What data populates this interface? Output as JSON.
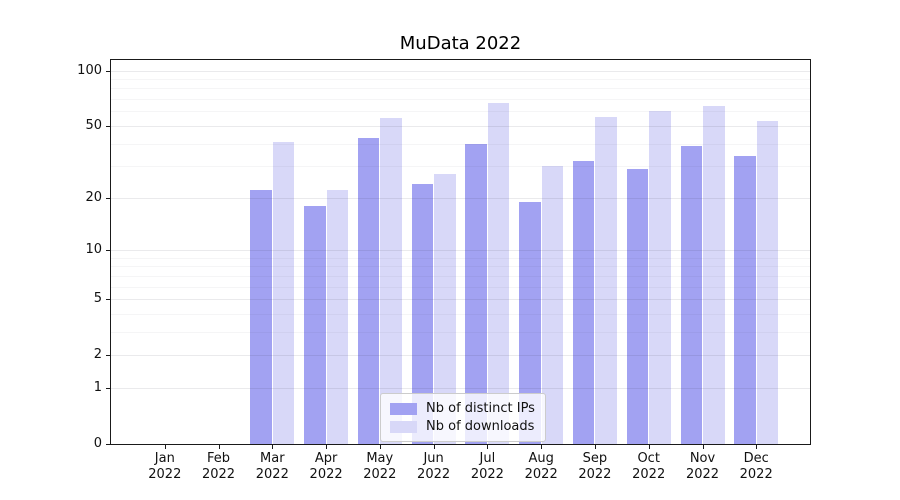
{
  "title": "MuData 2022",
  "chart_data": {
    "type": "bar",
    "title": "MuData 2022",
    "categories": [
      "Jan 2022",
      "Feb 2022",
      "Mar 2022",
      "Apr 2022",
      "May 2022",
      "Jun 2022",
      "Jul 2022",
      "Aug 2022",
      "Sep 2022",
      "Oct 2022",
      "Nov 2022",
      "Dec 2022"
    ],
    "months": [
      "Jan",
      "Feb",
      "Mar",
      "Apr",
      "May",
      "Jun",
      "Jul",
      "Aug",
      "Sep",
      "Oct",
      "Nov",
      "Dec"
    ],
    "year_line": "2022",
    "series": [
      {
        "name": "Nb of distinct IPs",
        "color": "#a2a2f2",
        "values": [
          0,
          0,
          22,
          18,
          43,
          24,
          40,
          19,
          32,
          29,
          39,
          34
        ]
      },
      {
        "name": "Nb of downloads",
        "color": "#d8d8f8",
        "values": [
          0,
          0,
          41,
          22,
          55,
          27,
          67,
          30,
          56,
          60,
          64,
          53
        ]
      }
    ],
    "xlabel": "",
    "ylabel": "",
    "yscale": "symlog",
    "yticks": [
      0,
      1,
      2,
      5,
      10,
      20,
      50,
      100
    ],
    "yticks_minor": [
      3,
      4,
      6,
      7,
      8,
      9,
      30,
      40,
      60,
      70,
      80,
      90
    ],
    "ylim": [
      0,
      114
    ],
    "grid": true,
    "legend_position": "lower center"
  },
  "colors": {
    "grid_major": "rgba(60,60,80,0.105)",
    "grid_minor": "rgba(60,60,80,0.05)",
    "spine": "#1a1a1a",
    "text": "#111111",
    "legend_border": "#cccccc"
  }
}
